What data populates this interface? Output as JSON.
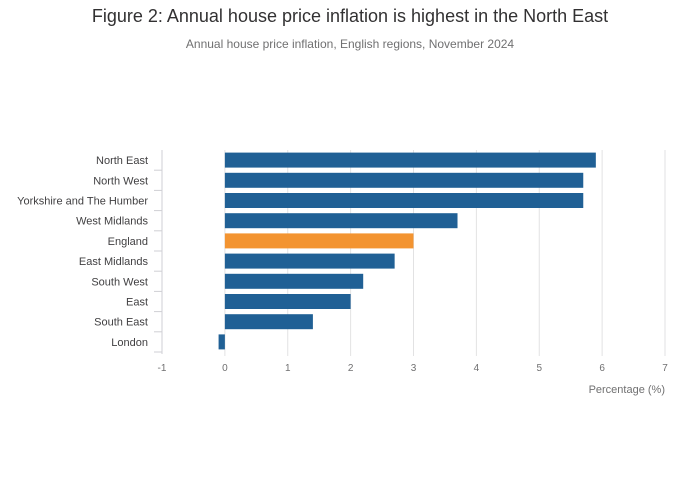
{
  "title": "Figure 2: Annual house price inflation is highest in the North East",
  "subtitle": "Annual house price inflation, English regions, November 2024",
  "chart_data": {
    "type": "bar",
    "orientation": "horizontal",
    "categories": [
      "North East",
      "North West",
      "Yorkshire and The Humber",
      "West Midlands",
      "England",
      "East Midlands",
      "South West",
      "East",
      "South East",
      "London"
    ],
    "values": [
      5.9,
      5.7,
      5.7,
      3.7,
      3.0,
      2.7,
      2.2,
      2.0,
      1.4,
      -0.1
    ],
    "highlight_category": "England",
    "colors": {
      "default": "#206095",
      "highlight": "#f39431",
      "grid": "#e2e2e3",
      "axis_text": "#707071",
      "category_text": "#414042"
    },
    "xlabel": "Percentage (%)",
    "ylabel": "",
    "xlim": [
      -1,
      7
    ],
    "xticks": [
      "-1",
      "0",
      "1",
      "2",
      "3",
      "4",
      "5",
      "6",
      "7"
    ],
    "grid": true,
    "legend": "none"
  }
}
